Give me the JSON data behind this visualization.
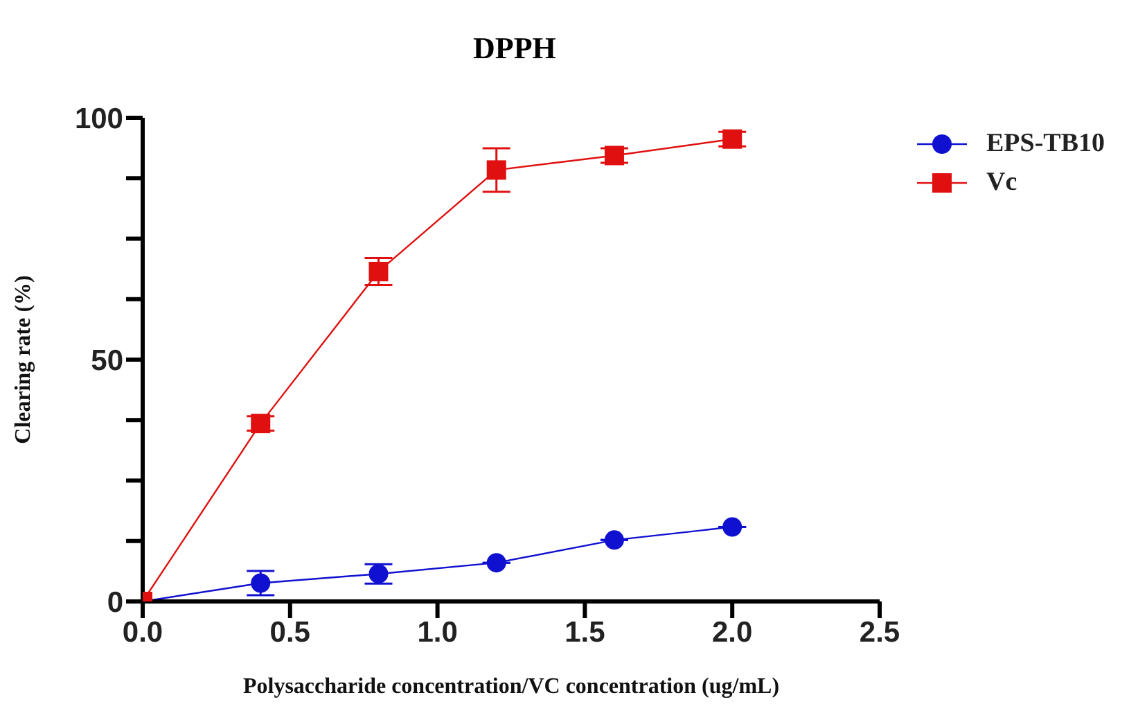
{
  "chart_data": {
    "type": "line",
    "title": "DPPH",
    "xlabel": "Polysaccharide concentration/VC concentration (ug/mL)",
    "ylabel": "Clearing rate (%)",
    "x": [
      0,
      0.4,
      0.8,
      1.2,
      1.6,
      2.0
    ],
    "series": [
      {
        "name": "EPS-TB10",
        "color": "#1010d0",
        "marker": "circle",
        "values": [
          0,
          3.8,
          5.7,
          8.0,
          12.7,
          15.4
        ],
        "errors": [
          null,
          2.5,
          2,
          null,
          null,
          null
        ]
      },
      {
        "name": "Vc",
        "color": "#e01010",
        "marker": "square",
        "values": [
          0,
          36.8,
          68.2,
          89.2,
          92.2,
          95.6
        ],
        "errors": [
          null,
          1.5,
          2.8,
          4.5,
          1.5,
          1.5
        ]
      }
    ],
    "xlim": [
      0,
      2.5
    ],
    "xticks": [
      {
        "value": 0,
        "label": "0.0"
      },
      0.5,
      {
        "value": 1,
        "label": "1.0"
      },
      1.5,
      {
        "value": 2,
        "label": "2.0"
      },
      2.5
    ],
    "ylim": [
      0,
      100
    ],
    "yticks": [
      0,
      {
        "value": 12.5,
        "label": null
      },
      {
        "value": 25,
        "label": null
      },
      {
        "value": 37.5,
        "label": null
      },
      50,
      {
        "value": 62.5,
        "label": null
      },
      {
        "value": 75,
        "label": null
      },
      {
        "value": 87.5,
        "label": null
      },
      100
    ],
    "grid": false,
    "legend": "top right",
    "line_style": "solid"
  }
}
